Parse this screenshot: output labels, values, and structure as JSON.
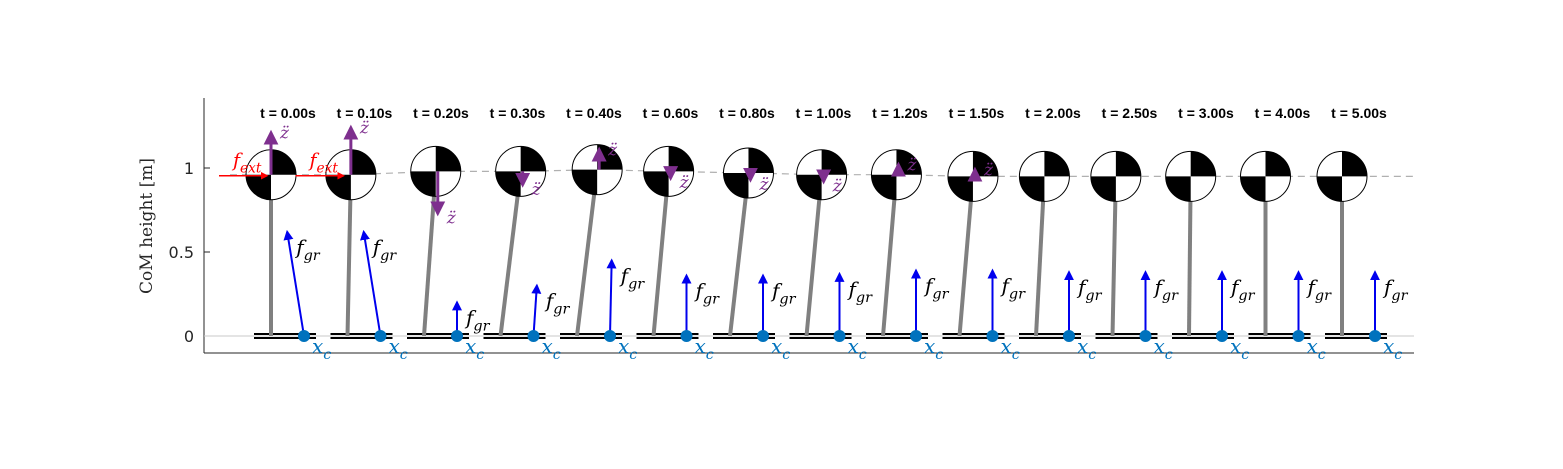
{
  "chart_data": {
    "type": "scatter",
    "title": "",
    "xlabel": "",
    "ylabel": "CoM height [m]",
    "yticks": [
      "0",
      "0.5",
      "1"
    ],
    "ylim": [
      -0.1,
      1.4
    ],
    "grid": false,
    "labels": {
      "external_force": "f_ext",
      "ground_force": "f_gr",
      "com_accel": "z̈",
      "zmp": "x_c"
    },
    "colors": {
      "leg": "#808080",
      "ground_force": "#0000ee",
      "com_accel": "#7e2f8e",
      "external_force": "#ff0000",
      "zmp": "#0072bd",
      "trajectory": "#b0b0b0"
    },
    "snapshots": [
      {
        "t_label": "t = 0.00s",
        "com_height": 0.96,
        "lean": 0.0,
        "fgr": 0.62,
        "fgr_lean": -0.1,
        "zacc": 0.25,
        "fext": true
      },
      {
        "t_label": "t = 0.10s",
        "com_height": 0.96,
        "lean": 0.02,
        "fgr": 0.62,
        "fgr_lean": -0.1,
        "zacc": 0.28,
        "fext": true
      },
      {
        "t_label": "t = 0.20s",
        "com_height": 0.98,
        "lean": 0.07,
        "fgr": 0.2,
        "fgr_lean": 0.0,
        "zacc": -0.25,
        "fext": false
      },
      {
        "t_label": "t = 0.30s",
        "com_height": 0.98,
        "lean": 0.12,
        "fgr": 0.3,
        "fgr_lean": 0.02,
        "zacc": -0.08,
        "fext": false
      },
      {
        "t_label": "t = 0.40s",
        "com_height": 0.99,
        "lean": 0.12,
        "fgr": 0.45,
        "fgr_lean": 0.01,
        "zacc": 0.12,
        "fext": false
      },
      {
        "t_label": "t = 0.60s",
        "com_height": 0.98,
        "lean": 0.09,
        "fgr": 0.36,
        "fgr_lean": 0.0,
        "zacc": -0.04,
        "fext": false
      },
      {
        "t_label": "t = 0.80s",
        "com_height": 0.97,
        "lean": 0.11,
        "fgr": 0.36,
        "fgr_lean": 0.0,
        "zacc": -0.04,
        "fext": false
      },
      {
        "t_label": "t = 1.00s",
        "com_height": 0.96,
        "lean": 0.09,
        "fgr": 0.37,
        "fgr_lean": 0.0,
        "zacc": -0.04,
        "fext": false
      },
      {
        "t_label": "t = 1.20s",
        "com_height": 0.96,
        "lean": 0.08,
        "fgr": 0.39,
        "fgr_lean": 0.0,
        "zacc": 0.06,
        "fext": false
      },
      {
        "t_label": "t = 1.50s",
        "com_height": 0.95,
        "lean": 0.08,
        "fgr": 0.39,
        "fgr_lean": 0.0,
        "zacc": 0.04,
        "fext": false
      },
      {
        "t_label": "t = 2.00s",
        "com_height": 0.95,
        "lean": 0.05,
        "fgr": 0.38,
        "fgr_lean": 0.0,
        "zacc": 0.0,
        "fext": false
      },
      {
        "t_label": "t = 2.50s",
        "com_height": 0.95,
        "lean": 0.02,
        "fgr": 0.38,
        "fgr_lean": 0.0,
        "zacc": 0.0,
        "fext": false
      },
      {
        "t_label": "t = 3.00s",
        "com_height": 0.95,
        "lean": 0.01,
        "fgr": 0.38,
        "fgr_lean": 0.0,
        "zacc": 0.0,
        "fext": false
      },
      {
        "t_label": "t = 4.00s",
        "com_height": 0.95,
        "lean": 0.0,
        "fgr": 0.38,
        "fgr_lean": 0.0,
        "zacc": 0.0,
        "fext": false
      },
      {
        "t_label": "t = 5.00s",
        "com_height": 0.95,
        "lean": 0.0,
        "fgr": 0.38,
        "fgr_lean": 0.0,
        "zacc": 0.0,
        "fext": false
      }
    ]
  }
}
